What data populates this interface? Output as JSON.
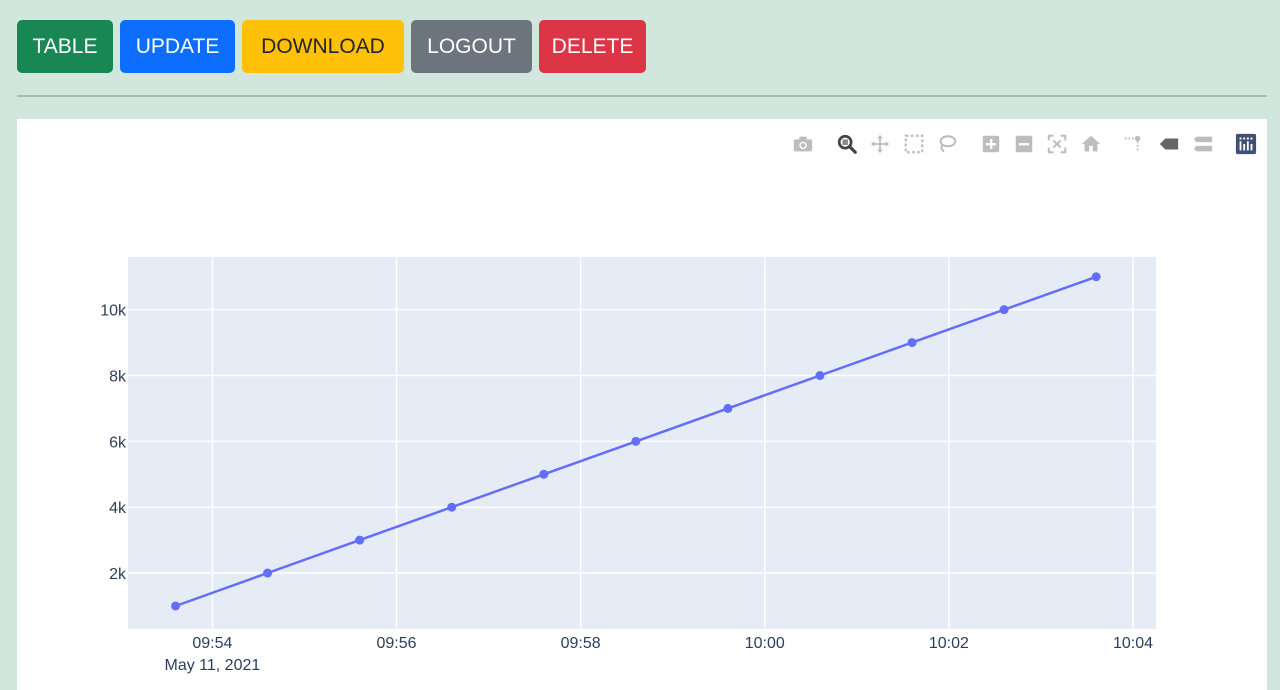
{
  "toolbar": {
    "buttons": [
      {
        "id": "table",
        "label": "TABLE",
        "color": "#198754"
      },
      {
        "id": "update",
        "label": "UPDATE",
        "color": "#0d6efd"
      },
      {
        "id": "download",
        "label": "DOWNLOAD",
        "color": "#ffc107"
      },
      {
        "id": "logout",
        "label": "LOGOUT",
        "color": "#6c757d"
      },
      {
        "id": "delete",
        "label": "DELETE",
        "color": "#dc3545"
      }
    ]
  },
  "modebar": {
    "icons": [
      "camera-icon",
      "zoom-icon",
      "pan-icon",
      "box-select-icon",
      "lasso-select-icon",
      "zoom-in-icon",
      "zoom-out-icon",
      "autoscale-icon",
      "reset-axes-icon",
      "spike-lines-icon",
      "hover-closest-icon",
      "hover-compare-icon",
      "plotly-logo-icon"
    ]
  },
  "chart_data": {
    "type": "line",
    "title": "",
    "xlabel": "",
    "ylabel": "",
    "x": [
      "09:53:36",
      "09:54:36",
      "09:55:36",
      "09:56:36",
      "09:57:36",
      "09:58:36",
      "09:59:36",
      "10:00:36",
      "10:01:36",
      "10:02:36",
      "10:03:36"
    ],
    "series": [
      {
        "values": [
          1000,
          2000,
          3000,
          4000,
          5000,
          6000,
          7000,
          8000,
          9000,
          10000,
          11000
        ]
      }
    ],
    "x_range": [
      "09:53:05",
      "10:04:15"
    ],
    "y_range": [
      300,
      11600
    ],
    "x_ticks": [
      "09:54",
      "09:56",
      "09:58",
      "10:00",
      "10:02",
      "10:04"
    ],
    "x_tick_date": "May 11, 2021",
    "y_ticks": [
      "2k",
      "4k",
      "6k",
      "8k",
      "10k"
    ],
    "y_tick_values": [
      2000,
      4000,
      6000,
      8000,
      10000
    ],
    "grid": true,
    "line_color": "#636efa",
    "plot_bg": "#e5ecf6"
  }
}
